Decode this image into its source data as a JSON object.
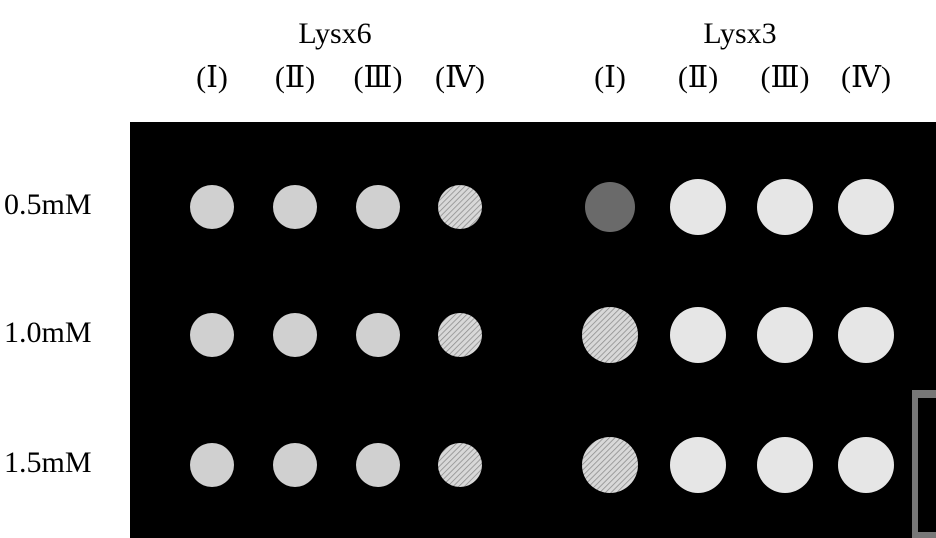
{
  "groups": [
    {
      "title": "Lysx6",
      "columns": [
        "(Ⅰ)",
        "(Ⅱ)",
        "(Ⅲ)",
        "(Ⅳ)"
      ]
    },
    {
      "title": "Lysx3",
      "columns": [
        "(Ⅰ)",
        "(Ⅱ)",
        "(Ⅲ)",
        "(Ⅳ)"
      ]
    }
  ],
  "rows": [
    "0.5mM",
    "1.0mM",
    "1.5mM"
  ]
}
